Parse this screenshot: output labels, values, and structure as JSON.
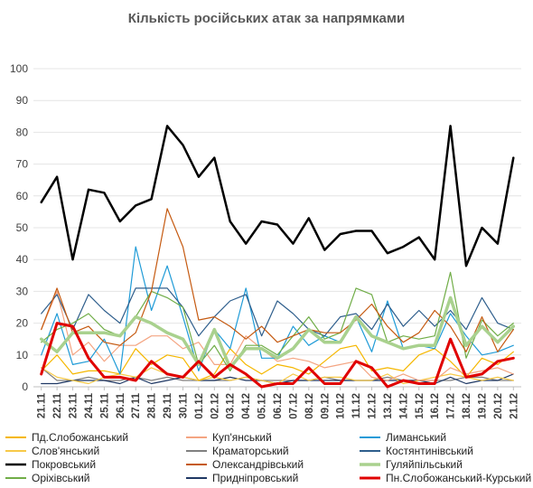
{
  "chart_data": {
    "type": "line",
    "title": "Кількість російських атак за напрямками",
    "xlabel": "",
    "ylabel": "",
    "ylim": [
      0,
      100
    ],
    "yticks": [
      0,
      10,
      20,
      30,
      40,
      50,
      60,
      70,
      80,
      90,
      100
    ],
    "grid": true,
    "legend_position": "bottom",
    "x": [
      "21.11",
      "22.11",
      "23.11",
      "24.11",
      "25.11",
      "26.11",
      "27.11",
      "28.11",
      "29.11",
      "30.11",
      "01.12",
      "02.12",
      "03.12",
      "04.12",
      "05.12",
      "06.12",
      "07.12",
      "08.12",
      "09.12",
      "10.12",
      "11.12",
      "12.12",
      "13.12",
      "14.12",
      "15.12",
      "16.12",
      "17.12",
      "18.12",
      "19.12",
      "20.12",
      "21.12"
    ],
    "series": [
      {
        "name": "Пд.Слобожанський",
        "color": "#f5b700",
        "width": 1.2,
        "values": [
          5,
          10,
          4,
          5,
          5,
          4,
          12,
          7,
          10,
          9,
          2,
          4,
          12,
          7,
          4,
          7,
          6,
          4,
          8,
          12,
          13,
          5,
          6,
          5,
          10,
          12,
          8,
          3,
          9,
          7,
          11
        ]
      },
      {
        "name": "Куп'янський",
        "color": "#f4a582",
        "width": 1.2,
        "values": [
          18,
          30,
          10,
          14,
          8,
          13,
          13,
          16,
          16,
          12,
          14,
          7,
          7,
          16,
          12,
          8,
          9,
          8,
          6,
          7,
          8,
          3,
          2,
          4,
          2,
          2,
          6,
          4,
          5,
          6,
          4
        ]
      },
      {
        "name": "Лиманський",
        "color": "#1f9bd7",
        "width": 1.2,
        "values": [
          10,
          23,
          7,
          8,
          15,
          4,
          44,
          24,
          38,
          22,
          5,
          18,
          12,
          31,
          9,
          9,
          19,
          13,
          16,
          14,
          22,
          11,
          27,
          12,
          13,
          12,
          23,
          16,
          10,
          11,
          13
        ]
      },
      {
        "name": "Слов'янський",
        "color": "#f7c948",
        "width": 1.2,
        "values": [
          6,
          3,
          2,
          1,
          3,
          4,
          3,
          6,
          4,
          3,
          2,
          3,
          2,
          3,
          2,
          1,
          4,
          2,
          3,
          3,
          2,
          2,
          4,
          1,
          2,
          3,
          4,
          3,
          2,
          3,
          2
        ]
      },
      {
        "name": "Краматорський",
        "color": "#808080",
        "width": 1.2,
        "values": [
          6,
          2,
          2,
          3,
          2,
          2,
          3,
          2,
          3,
          2,
          2,
          2,
          2,
          3,
          2,
          2,
          2,
          2,
          3,
          2,
          2,
          2,
          3,
          2,
          2,
          2,
          2,
          3,
          3,
          2,
          2
        ]
      },
      {
        "name": "Костянтинівський",
        "color": "#2e5e8c",
        "width": 1.2,
        "values": [
          23,
          29,
          18,
          29,
          24,
          20,
          31,
          31,
          31,
          25,
          16,
          22,
          27,
          29,
          16,
          27,
          23,
          18,
          16,
          22,
          23,
          18,
          26,
          19,
          24,
          19,
          24,
          18,
          28,
          20,
          18
        ]
      },
      {
        "name": "Покровський",
        "color": "#000000",
        "width": 2.5,
        "values": [
          58,
          66,
          40,
          62,
          61,
          52,
          57,
          59,
          82,
          76,
          66,
          72,
          52,
          45,
          52,
          51,
          45,
          53,
          43,
          48,
          49,
          49,
          42,
          44,
          47,
          40,
          82,
          38,
          50,
          45,
          72
        ]
      },
      {
        "name": "Олександрівський",
        "color": "#c55a11",
        "width": 1.2,
        "values": [
          18,
          31,
          17,
          19,
          14,
          13,
          17,
          30,
          56,
          44,
          21,
          22,
          19,
          15,
          19,
          14,
          16,
          18,
          17,
          17,
          21,
          26,
          19,
          14,
          17,
          24,
          19,
          11,
          22,
          11,
          18
        ]
      },
      {
        "name": "Гуляйпільський",
        "color": "#a9d18e",
        "width": 3.5,
        "values": [
          15,
          11,
          17,
          17,
          17,
          16,
          22,
          20,
          17,
          15,
          7,
          18,
          6,
          12,
          12,
          9,
          12,
          18,
          14,
          14,
          22,
          16,
          14,
          12,
          13,
          13,
          28,
          13,
          19,
          14,
          19
        ]
      },
      {
        "name": "Оріхівський",
        "color": "#70ad47",
        "width": 1.2,
        "values": [
          14,
          18,
          20,
          23,
          18,
          16,
          22,
          30,
          28,
          25,
          7,
          13,
          5,
          13,
          13,
          10,
          16,
          22,
          15,
          17,
          31,
          29,
          14,
          16,
          15,
          16,
          36,
          9,
          21,
          16,
          20
        ]
      },
      {
        "name": "Придніпровський",
        "color": "#1f3864",
        "width": 1.2,
        "values": [
          1,
          1,
          2,
          2,
          2,
          1,
          3,
          1,
          2,
          3,
          2,
          2,
          3,
          2,
          2,
          1,
          2,
          2,
          2,
          2,
          2,
          2,
          2,
          2,
          2,
          1,
          3,
          1,
          2,
          2,
          4
        ]
      },
      {
        "name": "Пн.Слобожанський-Курський",
        "color": "#e00000",
        "width": 3,
        "values": [
          4,
          20,
          19,
          9,
          3,
          3,
          2,
          8,
          4,
          3,
          8,
          3,
          7,
          4,
          0,
          1,
          1,
          6,
          1,
          1,
          8,
          6,
          0,
          2,
          1,
          1,
          15,
          3,
          4,
          8,
          9
        ]
      }
    ]
  }
}
